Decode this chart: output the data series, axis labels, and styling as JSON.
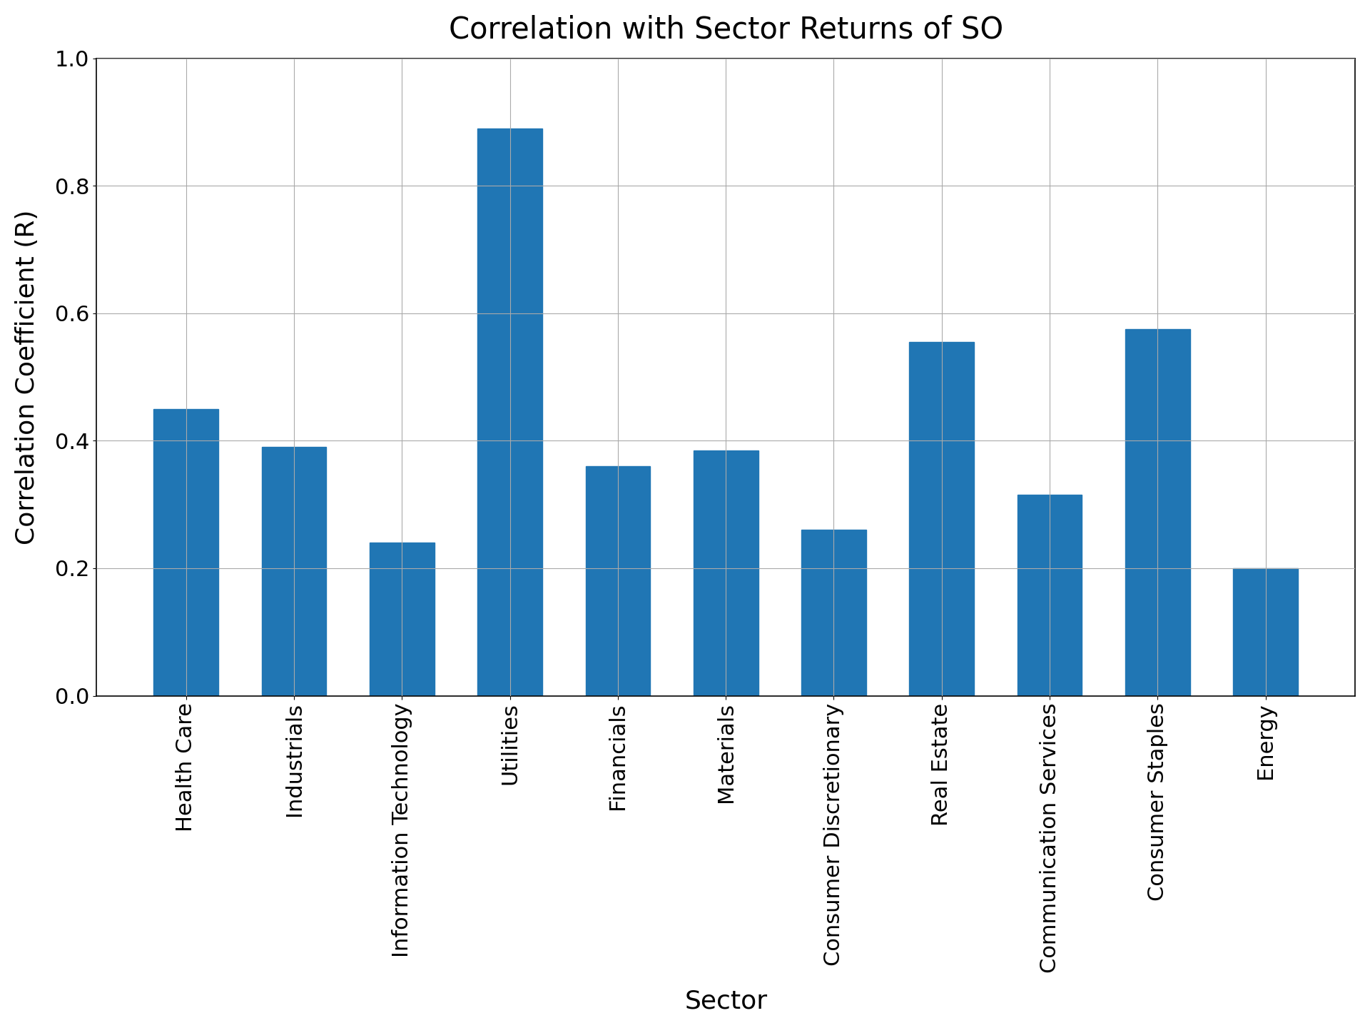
{
  "title": "Correlation with Sector Returns of SO",
  "xlabel": "Sector",
  "ylabel": "Correlation Coefficient (R)",
  "categories": [
    "Health Care",
    "Industrials",
    "Information Technology",
    "Utilities",
    "Financials",
    "Materials",
    "Consumer Discretionary",
    "Real Estate",
    "Communication Services",
    "Consumer Staples",
    "Energy"
  ],
  "values": [
    0.45,
    0.39,
    0.24,
    0.89,
    0.36,
    0.385,
    0.26,
    0.555,
    0.315,
    0.575,
    0.2
  ],
  "bar_color": "#2076b4",
  "ylim": [
    0.0,
    1.0
  ],
  "yticks": [
    0.0,
    0.2,
    0.4,
    0.6,
    0.8,
    1.0
  ],
  "title_fontsize": 30,
  "label_fontsize": 26,
  "tick_fontsize": 22,
  "background_color": "#ffffff",
  "grid": true,
  "edgecolor": "#2076b4",
  "bar_width": 0.6
}
